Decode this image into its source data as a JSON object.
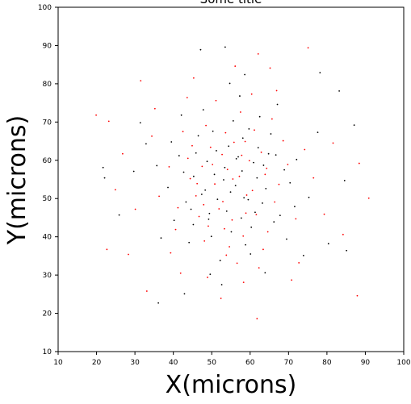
{
  "chart_data": {
    "type": "scatter",
    "title": "Some title",
    "xlabel": "X(microns)",
    "ylabel": "Y(microns)",
    "xlim": [
      10,
      100
    ],
    "ylim": [
      10,
      100
    ],
    "xticks": [
      "10",
      "20",
      "30",
      "40",
      "50",
      "60",
      "70",
      "80",
      "90",
      "100"
    ],
    "yticks": [
      "10",
      "20",
      "30",
      "40",
      "50",
      "60",
      "70",
      "80",
      "90",
      "100"
    ],
    "grid": false,
    "series": [
      {
        "color": "#000000",
        "points": [
          [
            36.1,
            22.7
          ],
          [
            42.9,
            25.1
          ],
          [
            47.1,
            88.9
          ],
          [
            53.5,
            89.6
          ],
          [
            21.7,
            58.1
          ],
          [
            22.1,
            55.4
          ],
          [
            25.9,
            45.7
          ],
          [
            32.9,
            64.3
          ],
          [
            83.2,
            78.1
          ],
          [
            87.1,
            69.2
          ],
          [
            78.2,
            82.9
          ],
          [
            84.6,
            54.7
          ],
          [
            80.4,
            38.2
          ],
          [
            85.1,
            36.4
          ],
          [
            52.6,
            27.5
          ],
          [
            49.4,
            46.1
          ],
          [
            45.3,
            55.8
          ],
          [
            56.4,
            60.4
          ],
          [
            59.5,
            49.7
          ],
          [
            61.8,
            55.4
          ],
          [
            53.4,
            58.1
          ],
          [
            57.7,
            44.9
          ],
          [
            51.2,
            62.5
          ],
          [
            63.5,
            58.7
          ],
          [
            48.3,
            52.2
          ],
          [
            54.9,
            51.7
          ],
          [
            66.7,
            61.4
          ],
          [
            44.6,
            47.2
          ],
          [
            58.1,
            65.8
          ],
          [
            60.3,
            42.5
          ],
          [
            70.4,
            54.1
          ],
          [
            41.5,
            61.2
          ],
          [
            49.9,
            40.1
          ],
          [
            63.2,
            48.8
          ],
          [
            55.6,
            70.3
          ],
          [
            67.8,
            45.6
          ],
          [
            38.6,
            52.9
          ],
          [
            46.5,
            66.4
          ],
          [
            58.8,
            37.9
          ],
          [
            72.1,
            60.2
          ],
          [
            52.2,
            33.8
          ],
          [
            62.5,
            71.4
          ],
          [
            35.7,
            58.6
          ],
          [
            44.1,
            38.5
          ],
          [
            69.5,
            39.4
          ],
          [
            75.3,
            50.3
          ],
          [
            47.8,
            73.2
          ],
          [
            57.3,
            76.8
          ],
          [
            65.4,
            66.9
          ],
          [
            40.2,
            44.3
          ],
          [
            53.9,
            46.7
          ],
          [
            60.9,
            59.4
          ],
          [
            50.7,
            56.3
          ],
          [
            56.2,
            53.4
          ],
          [
            64.1,
            52.6
          ],
          [
            48.8,
            59.7
          ],
          [
            43.3,
            49.1
          ],
          [
            59.7,
            68.2
          ],
          [
            54.4,
            63.7
          ],
          [
            66.2,
            43.9
          ],
          [
            51.5,
            49.8
          ],
          [
            57.9,
            57.2
          ],
          [
            45.9,
            61.9
          ],
          [
            62.1,
            63.3
          ],
          [
            49.2,
            44.6
          ],
          [
            55.1,
            41.3
          ],
          [
            68.9,
            57.5
          ],
          [
            42.7,
            56.9
          ],
          [
            61.3,
            46.4
          ],
          [
            53.1,
            54.9
          ],
          [
            58.4,
            50.2
          ],
          [
            47.4,
            51.1
          ],
          [
            64.8,
            61.7
          ],
          [
            50.3,
            67.6
          ],
          [
            56.9,
            60.9
          ],
          [
            39.5,
            64.8
          ],
          [
            71.6,
            47.9
          ],
          [
            45.2,
            43.2
          ],
          [
            60.1,
            35.5
          ],
          [
            54.7,
            80.1
          ],
          [
            31.4,
            69.8
          ],
          [
            77.6,
            67.3
          ],
          [
            73.9,
            35.1
          ],
          [
            36.8,
            39.7
          ],
          [
            67.1,
            74.6
          ],
          [
            42.1,
            71.8
          ],
          [
            63.9,
            30.6
          ],
          [
            49.6,
            30.2
          ],
          [
            58.6,
            82.4
          ],
          [
            29.7,
            57.1
          ]
        ]
      },
      {
        "color": "#ff0000",
        "points": [
          [
            19.9,
            71.8
          ],
          [
            23.2,
            70.2
          ],
          [
            22.7,
            36.7
          ],
          [
            28.3,
            35.4
          ],
          [
            33.1,
            25.8
          ],
          [
            52.4,
            23.9
          ],
          [
            61.8,
            18.6
          ],
          [
            75.1,
            89.4
          ],
          [
            90.9,
            50.1
          ],
          [
            87.9,
            24.6
          ],
          [
            45.3,
            81.5
          ],
          [
            62.1,
            87.8
          ],
          [
            31.5,
            80.8
          ],
          [
            88.4,
            59.2
          ],
          [
            51.9,
            47.3
          ],
          [
            57.2,
            55.8
          ],
          [
            47.5,
            58.4
          ],
          [
            60.6,
            52.1
          ],
          [
            55.8,
            64.7
          ],
          [
            49.1,
            42.8
          ],
          [
            63.9,
            56.3
          ],
          [
            45.9,
            50.7
          ],
          [
            58.9,
            46.2
          ],
          [
            52.7,
            61.5
          ],
          [
            66.4,
            49.1
          ],
          [
            43.8,
            60.5
          ],
          [
            54.6,
            37.4
          ],
          [
            61.1,
            67.9
          ],
          [
            48.5,
            69.1
          ],
          [
            69.8,
            58.9
          ],
          [
            41.2,
            47.6
          ],
          [
            57.5,
            72.6
          ],
          [
            64.6,
            41.3
          ],
          [
            50.8,
            53.8
          ],
          [
            55.3,
            44.4
          ],
          [
            62.9,
            62.1
          ],
          [
            46.7,
            45.3
          ],
          [
            59.8,
            59.9
          ],
          [
            53.6,
            67.2
          ],
          [
            67.5,
            53.7
          ],
          [
            44.4,
            55.2
          ],
          [
            58.2,
            40.2
          ],
          [
            65.7,
            70.8
          ],
          [
            38.9,
            58.3
          ],
          [
            71.9,
            44.7
          ],
          [
            51.1,
            75.6
          ],
          [
            56.6,
            33.1
          ],
          [
            48.1,
            38.9
          ],
          [
            60.4,
            77.3
          ],
          [
            36.3,
            50.6
          ],
          [
            74.2,
            62.8
          ],
          [
            42.5,
            67.5
          ],
          [
            63.4,
            36.7
          ],
          [
            54.1,
            57.6
          ],
          [
            49.7,
            63.4
          ],
          [
            59.1,
            50.9
          ],
          [
            52.9,
            49.2
          ],
          [
            57.8,
            61.3
          ],
          [
            46.2,
            53.9
          ],
          [
            61.6,
            45.8
          ],
          [
            55.5,
            55.1
          ],
          [
            50.2,
            58.9
          ],
          [
            64.3,
            57.9
          ],
          [
            47.9,
            48.4
          ],
          [
            58.7,
            64.9
          ],
          [
            53.3,
            42.1
          ],
          [
            44.9,
            63.8
          ],
          [
            68.6,
            65.1
          ],
          [
            40.6,
            41.9
          ],
          [
            62.3,
            31.9
          ],
          [
            56.1,
            84.6
          ],
          [
            34.4,
            66.3
          ],
          [
            76.5,
            55.4
          ],
          [
            72.7,
            33.2
          ],
          [
            39.3,
            35.8
          ],
          [
            66.9,
            78.2
          ],
          [
            43.6,
            76.4
          ],
          [
            30.1,
            47.2
          ],
          [
            79.3,
            45.9
          ],
          [
            26.8,
            61.7
          ],
          [
            81.6,
            64.5
          ],
          [
            58.3,
            28.1
          ],
          [
            48.9,
            29.4
          ],
          [
            35.2,
            73.5
          ],
          [
            70.8,
            28.7
          ],
          [
            24.9,
            52.3
          ],
          [
            84.2,
            40.6
          ],
          [
            41.9,
            30.5
          ],
          [
            65.2,
            84.1
          ],
          [
            53.8,
            35.2
          ]
        ]
      }
    ]
  }
}
